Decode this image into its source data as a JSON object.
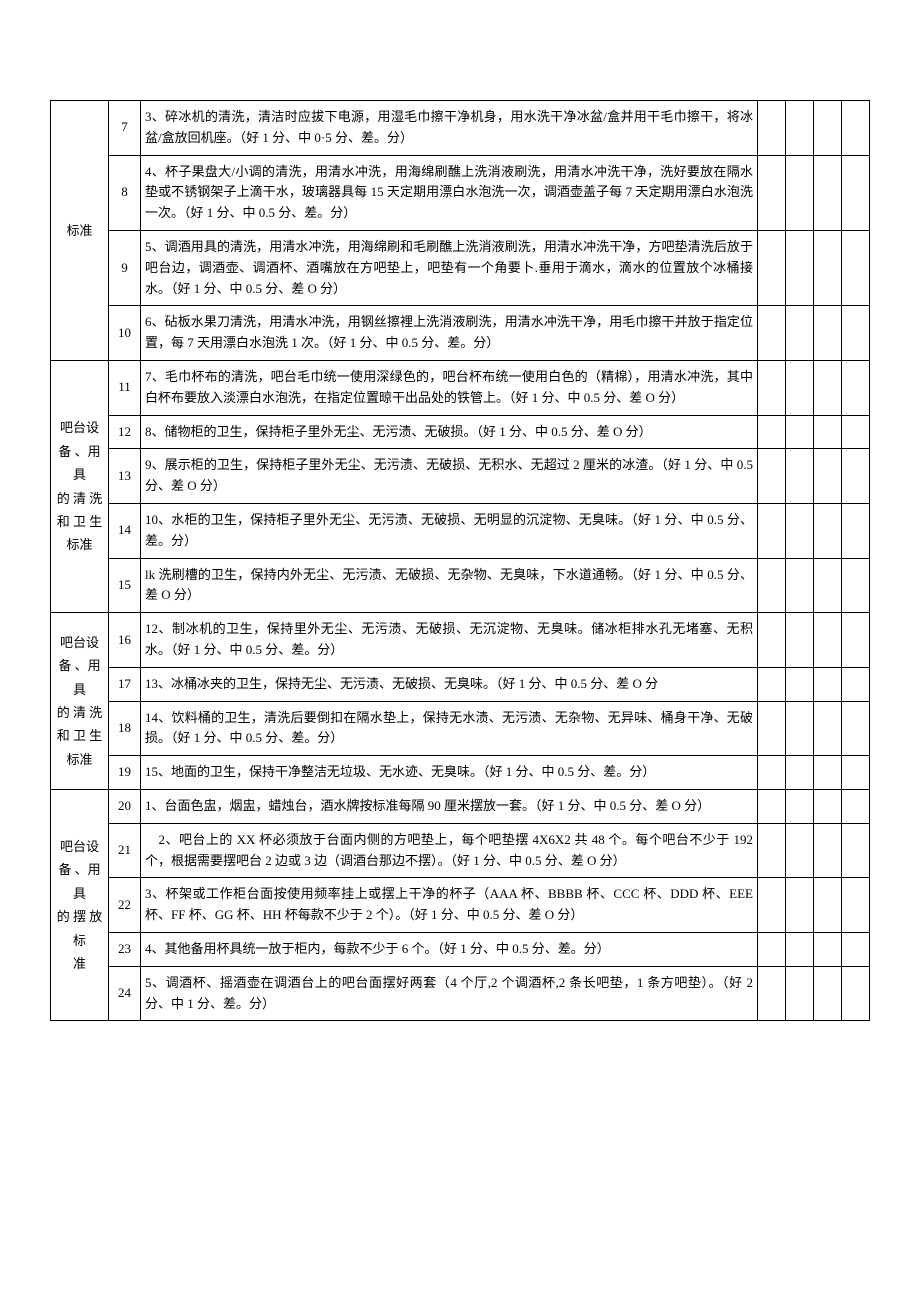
{
  "sections": [
    {
      "category_html": "标准",
      "rows": [
        {
          "n": "7",
          "text": "3、碎冰机的清洗，清洁时应拔下电源，用湿毛巾擦干净机身，用水洗干净冰盆/盒并用干毛巾擦干，将冰盆/盒放回机座。（好 1 分、中 0·5 分、差。分）"
        },
        {
          "n": "8",
          "text": "4、杯子果盘大/小调的清洗，用清水冲洗，用海绵刷醮上洗消液刷洗，用清水冲洗干净，洗好要放在隔水垫或不锈钢架子上滴干水，玻璃器具每 15 天定期用漂白水泡洗一次，调酒壶盖子每 7 天定期用漂白水泡洗一次。（好 1 分、中 0.5 分、差。分）"
        },
        {
          "n": "9",
          "text": "5、调酒用具的清洗，用清水冲洗，用海绵刷和毛刷醮上洗消液刷洗，用清水冲洗干净，方吧垫清洗后放于吧台边，调酒壶、调酒杯、酒嘴放在方吧垫上，吧垫有一个角要卜.垂用于滴水，滴水的位置放个冰桶接水。（好 1 分、中 0.5 分、差 O 分）"
        },
        {
          "n": "10",
          "text": "6、砧板水果刀清洗，用清水冲洗，用钢丝擦裡上洗消液刷洗，用清水冲洗干净，用毛巾擦干并放于指定位置，每 7 天用漂白水泡洗 1 次。（好 1 分、中 0.5 分、差。分）"
        }
      ]
    },
    {
      "category_html": "吧台设<br>备 、用 具<br>的 清 洗<br>和 卫 生<br>标准",
      "rows": [
        {
          "n": "11",
          "text": "7、毛巾杯布的清洗，吧台毛巾统一使用深绿色的，吧台杯布统一使用白色的（精棉），用清水冲洗，其中白杯布要放入淡漂白水泡洗，在指定位置晾干出品处的铁管上。（好 1 分、中 0.5 分、差 O 分）"
        },
        {
          "n": "12",
          "text": "8、储物柜的卫生，保持柜子里外无尘、无污渍、无破损。（好 1 分、中 0.5 分、差 O 分）"
        },
        {
          "n": "13",
          "text": "9、展示柜的卫生，保持柜子里外无尘、无污渍、无破损、无积水、无超过 2 厘米的冰渣。（好 1 分、中 0.5 分、差 O 分）"
        },
        {
          "n": "14",
          "text": "10、水柜的卫生，保持柜子里外无尘、无污渍、无破损、无明显的沉淀物、无臭味。（好 1 分、中 0.5 分、差。分）"
        },
        {
          "n": "15",
          "text": "lk 洗刷槽的卫生，保持内外无尘、无污渍、无破损、无杂物、无臭味，下水道通畅。（好 1 分、中 0.5 分、差 O 分）"
        }
      ]
    },
    {
      "category_html": "吧台设<br>备 、用 具<br>的 清 洗<br>和 卫 生<br>标准",
      "rows": [
        {
          "n": "16",
          "text": "12、制冰机的卫生，保持里外无尘、无污渍、无破损、无沉淀物、无臭味。储冰柜排水孔无堵塞、无积水。（好 1 分、中 0.5 分、差。分）"
        },
        {
          "n": "17",
          "text": "13、冰桶冰夹的卫生，保持无尘、无污渍、无破损、无臭味。（好 1 分、中 0.5 分、差 O 分"
        },
        {
          "n": "18",
          "text": "14、饮料桶的卫生，清洗后要倒扣在隔水垫上，保持无水渍、无污渍、无杂物、无异味、桶身干净、无破损。（好 1 分、中 0.5 分、差。分）"
        },
        {
          "n": "19",
          "text": "15、地面的卫生，保持干净整洁无垃圾、无水迹、无臭味。（好 1 分、中 0.5 分、差。分）"
        }
      ]
    },
    {
      "category_html": "吧台设<br>备 、用 具<br>的 摆 放<br>标<br>准",
      "rows": [
        {
          "n": "20",
          "text": "1、台面色盅，烟盅，蜡烛台，酒水牌按标准每隔 90 厘米摆放一套。（好 1 分、中 0.5 分、差 O 分）"
        },
        {
          "n": "21",
          "text": "　2、吧台上的 XX 杯必须放于台面内侧的方吧垫上，每个吧垫摆 4X6X2 共 48 个。每个吧台不少于 192 个，根据需要摆吧台 2 边或 3 边（调酒台那边不摆）。（好 1 分、中 0.5 分、差 O 分）"
        },
        {
          "n": "22",
          "text": "3、杯架或工作柜台面按使用频率挂上或摆上干净的杯子（AAA 杯、BBBB 杯、CCC 杯、DDD 杯、EEE 杯、FF 杯、GG 杯、HH 杯每款不少于 2 个）。（好 1 分、中 0.5 分、差 O 分）"
        },
        {
          "n": "23",
          "text": "4、其他备用杯具统一放于柜内，每款不少于 6 个。（好 1 分、中 0.5 分、差。分）"
        },
        {
          "n": "24",
          "text": "5、调酒杯、摇酒壶在调酒台上的吧台面摆好两套（4 个厅,2 个调酒杯,2 条长吧垫，1 条方吧垫）。（好 2 分、中 1 分、差。分）"
        }
      ]
    }
  ]
}
